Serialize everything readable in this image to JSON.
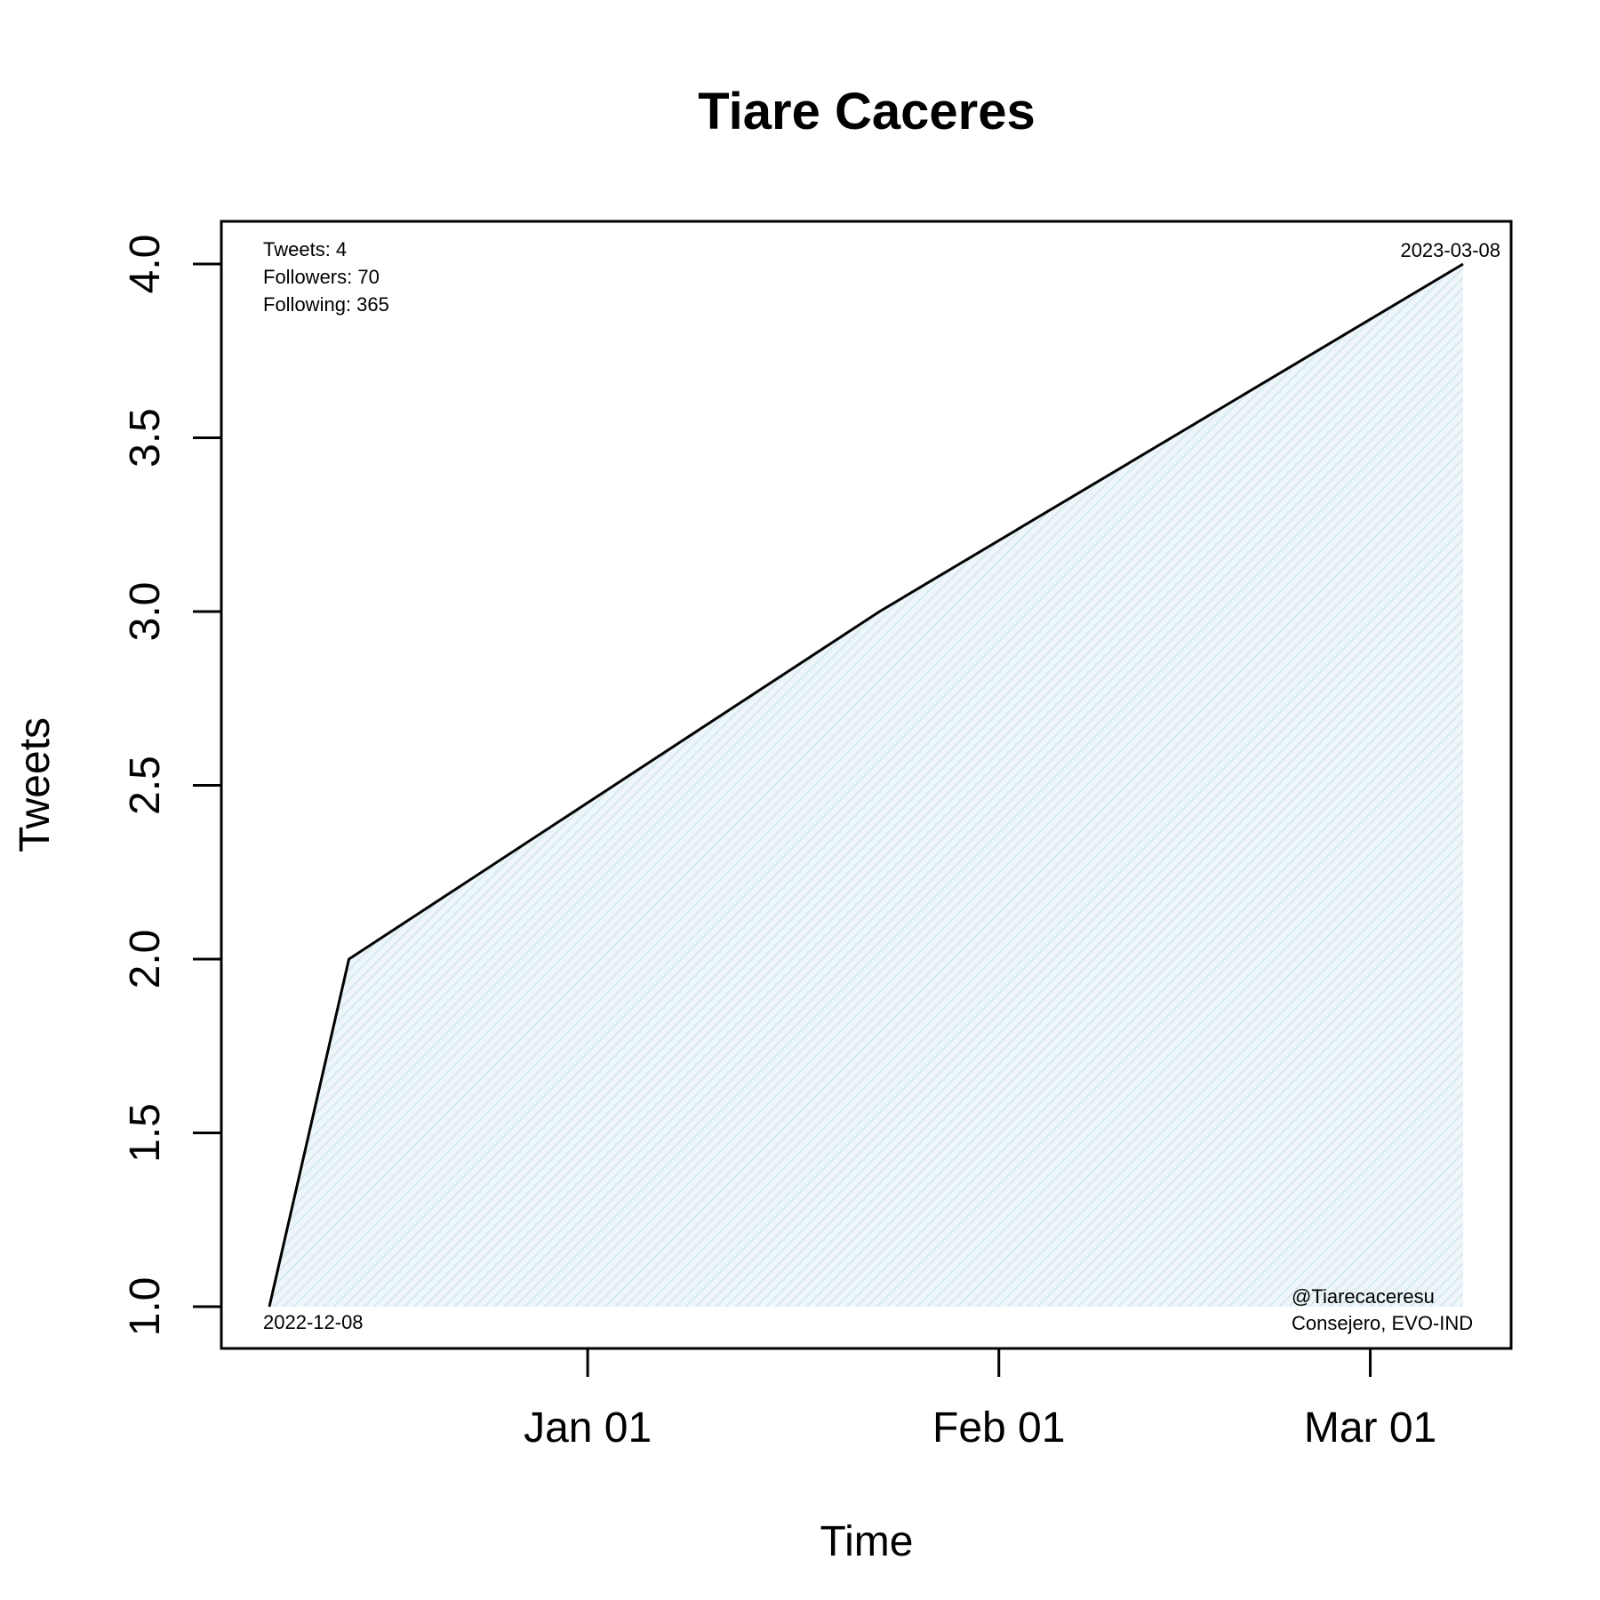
{
  "chart_data": {
    "type": "area",
    "title": "Tiare Caceres",
    "xlabel": "Time",
    "ylabel": "Tweets",
    "x": [
      "2022-12-08",
      "2022-12-14",
      "2023-01-23",
      "2023-03-08"
    ],
    "series": [
      {
        "values": [
          1,
          2,
          3,
          4
        ]
      }
    ],
    "x_ticks": [
      {
        "date": "2023-01-01",
        "label": "Jan 01"
      },
      {
        "date": "2023-02-01",
        "label": "Feb 01"
      },
      {
        "date": "2023-03-01",
        "label": "Mar 01"
      }
    ],
    "y_ticks": [
      1.0,
      1.5,
      2.0,
      2.5,
      3.0,
      3.5,
      4.0
    ],
    "ylim": [
      1.0,
      4.0
    ],
    "grid": false,
    "legend": "none",
    "line_color": "#000000",
    "fill_color": "#ddeef3"
  },
  "annotations": {
    "stats": [
      "Tweets: 4",
      "Followers: 70",
      "Following: 365"
    ],
    "start_date": "2022-12-08",
    "end_date": "2023-03-08",
    "handle": "@Tiarecaceresu",
    "affiliation": "Consejero, EVO-IND"
  }
}
